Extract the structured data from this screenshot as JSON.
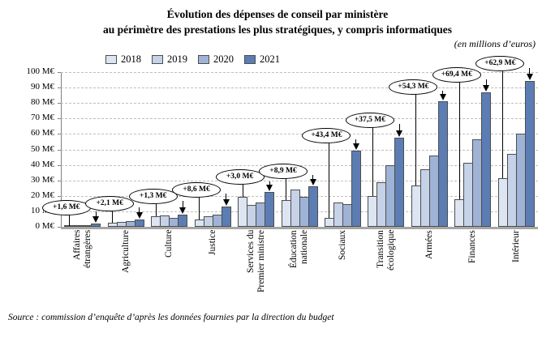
{
  "header": {
    "title_line1": "Évolution des dépenses de conseil par ministère",
    "title_line2": "au périmètre des prestations les plus stratégiques, y compris informatiques",
    "unit_note": "(en millions d’euros)"
  },
  "source": "Source : commission d’enquête d’après les données fournies par la direction du budget",
  "chart_data": {
    "type": "bar",
    "title": "Évolution des dépenses de conseil par ministère au périmètre des prestations les plus stratégiques, y compris informatiques",
    "unit": "M€",
    "xlabel": "",
    "ylabel": "",
    "ylim": [
      0,
      100
    ],
    "ytick_step": 10,
    "ytick_suffix": " M€",
    "grid": "horizontal-dashed",
    "legend_position": "top-left-inside",
    "categories": [
      "Affaires étrangères",
      "Agriculture",
      "Culture",
      "Justice",
      "Services du Premier ministre",
      "Éducation nationale",
      "Sociaux",
      "Transition écologique",
      "Armées",
      "Finances",
      "Intérieur"
    ],
    "category_label_lines": [
      [
        "Affaires",
        "étrangères"
      ],
      [
        "Agriculture"
      ],
      [
        "Culture"
      ],
      [
        "Justice"
      ],
      [
        "Services du",
        "Premier ministre"
      ],
      [
        "Éducation",
        "nationale"
      ],
      [
        "Sociaux"
      ],
      [
        "Transition",
        "écologique"
      ],
      [
        "Armées"
      ],
      [
        "Finances"
      ],
      [
        "Intérieur"
      ]
    ],
    "series": [
      {
        "name": "2018",
        "color": "#dce5f1",
        "values": [
          0.6,
          2.4,
          6.7,
          4.6,
          19.4,
          17.3,
          5.8,
          20.0,
          26.8,
          17.6,
          31.5
        ]
      },
      {
        "name": "2019",
        "color": "#c5d2e7",
        "values": [
          0.9,
          2.9,
          7.5,
          6.7,
          14.0,
          23.9,
          15.7,
          28.8,
          37.0,
          41.4,
          47.1
        ]
      },
      {
        "name": "2020",
        "color": "#9fb3d6",
        "values": [
          1.3,
          3.6,
          5.7,
          7.8,
          15.5,
          19.5,
          14.8,
          39.6,
          46.2,
          56.7,
          60.2
        ]
      },
      {
        "name": "2021",
        "color": "#5c7db3",
        "values": [
          2.2,
          4.5,
          8.0,
          13.2,
          22.4,
          26.2,
          49.2,
          57.5,
          81.1,
          87.0,
          94.4
        ]
      }
    ],
    "annotations": [
      {
        "text": "+1,6 M€",
        "y": 13
      },
      {
        "text": "+2,1 M€",
        "y": 15.5
      },
      {
        "text": "+1,3 M€",
        "y": 20
      },
      {
        "text": "+8,6 M€",
        "y": 24.5
      },
      {
        "text": "+3,0 M€",
        "y": 32.5
      },
      {
        "text": "+8,9 M€",
        "y": 36.5
      },
      {
        "text": "+43,4 M€",
        "y": 59.5
      },
      {
        "text": "+37,5 M€",
        "y": 69.5
      },
      {
        "text": "+54,3 M€",
        "y": 91
      },
      {
        "text": "+69,4 M€",
        "y": 98.5
      },
      {
        "text": "+62,9 M€",
        "y": 106
      }
    ],
    "colors": {
      "bar_border": "#4d4d4d",
      "gridline": "#bfbfbf",
      "axis": "#808080",
      "baseline_band": "#a6a6a6"
    }
  }
}
